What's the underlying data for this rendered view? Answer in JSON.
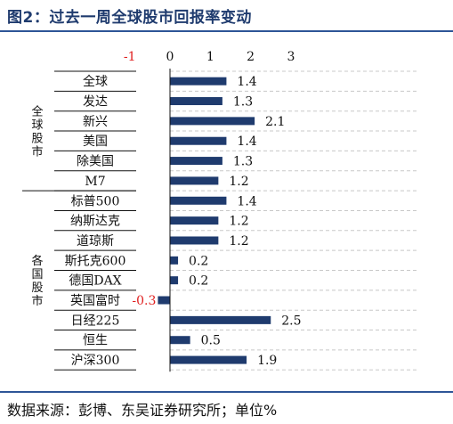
{
  "title": "图2：过去一周全球股市回报率变动",
  "source": "数据来源：彭博、东吴证券研究所；单位%",
  "colors": {
    "bar": "#1f3b6e",
    "negative_tick": "#e02020",
    "title": "#1f3b6e",
    "rule": "#2d5597"
  },
  "chart_data": {
    "type": "bar",
    "orientation": "horizontal",
    "xlim": [
      -1,
      3
    ],
    "ticks": [
      -1,
      0,
      1,
      2,
      3
    ],
    "tick_labels": [
      "-1",
      "0",
      "1",
      "2",
      "3"
    ],
    "grid": "horizontal-dashed",
    "groups": [
      {
        "name": "全球股市",
        "categories": [
          "全球",
          "发达",
          "新兴",
          "美国",
          "除美国",
          "M7"
        ]
      },
      {
        "name": "各国股市",
        "categories": [
          "标普500",
          "纳斯达克",
          "道琼斯",
          "斯托克600",
          "德国DAX",
          "英国富时",
          "日经225",
          "恒生",
          "沪深300"
        ]
      }
    ],
    "categories": [
      "全球",
      "发达",
      "新兴",
      "美国",
      "除美国",
      "M7",
      "标普500",
      "纳斯达克",
      "道琼斯",
      "斯托克600",
      "德国DAX",
      "英国富时",
      "日经225",
      "恒生",
      "沪深300"
    ],
    "values": [
      1.4,
      1.3,
      2.1,
      1.4,
      1.3,
      1.2,
      1.4,
      1.2,
      1.2,
      0.2,
      0.2,
      -0.3,
      2.5,
      0.5,
      1.9
    ],
    "value_labels": [
      "1.4",
      "1.3",
      "2.1",
      "1.4",
      "1.3",
      "1.2",
      "1.4",
      "1.2",
      "1.2",
      "0.2",
      "0.2",
      "-0.3",
      "2.5",
      "0.5",
      "1.9"
    ]
  }
}
